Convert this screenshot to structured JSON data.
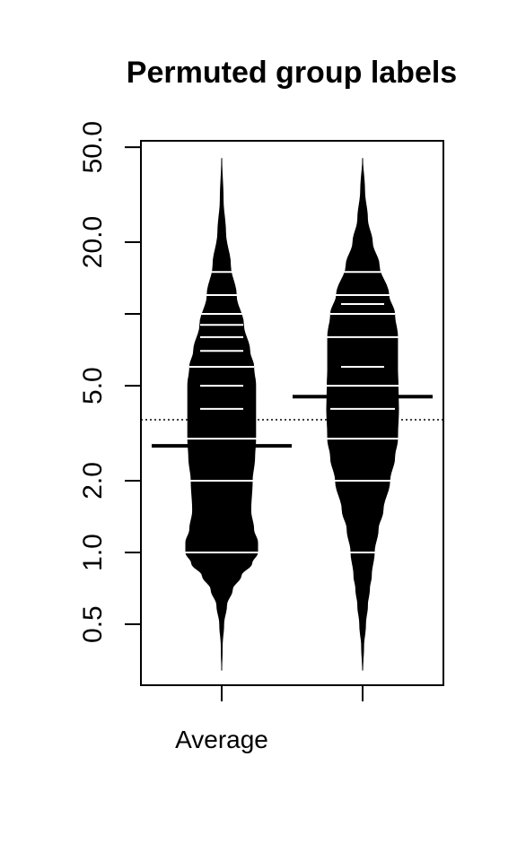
{
  "chart_data": {
    "type": "beanplot",
    "title": "Permuted group labels",
    "y_scale": "log",
    "ylim": [
      0.3,
      55
    ],
    "y_ticks": [
      {
        "value": 0.5,
        "label": "0.5"
      },
      {
        "value": 1,
        "label": "1.0"
      },
      {
        "value": 2,
        "label": "2.0"
      },
      {
        "value": 5,
        "label": "5.0"
      },
      {
        "value": 10,
        "label": ""
      },
      {
        "value": 20,
        "label": "20.0"
      },
      {
        "value": 50,
        "label": "50.0"
      }
    ],
    "x_tick_labels": [
      "Average",
      ""
    ],
    "overall_mean_line": 3.6,
    "beans": [
      {
        "name": "Average",
        "mean": 2.8,
        "density": [
          [
            0.32,
            0.0
          ],
          [
            0.4,
            0.01
          ],
          [
            0.5,
            0.04
          ],
          [
            0.6,
            0.1
          ],
          [
            0.7,
            0.22
          ],
          [
            0.8,
            0.4
          ],
          [
            0.9,
            0.62
          ],
          [
            1.0,
            0.74
          ],
          [
            1.1,
            0.74
          ],
          [
            1.25,
            0.66
          ],
          [
            1.5,
            0.6
          ],
          [
            2.0,
            0.63
          ],
          [
            2.5,
            0.68
          ],
          [
            3.0,
            0.7
          ],
          [
            4.0,
            0.7
          ],
          [
            5.0,
            0.7
          ],
          [
            6.0,
            0.66
          ],
          [
            7.0,
            0.58
          ],
          [
            9.0,
            0.45
          ],
          [
            12.0,
            0.3
          ],
          [
            16.0,
            0.18
          ],
          [
            22.0,
            0.08
          ],
          [
            30.0,
            0.03
          ],
          [
            45.0,
            0.0
          ]
        ],
        "observations": [
          {
            "value": 1.0,
            "count": 3
          },
          {
            "value": 2.0,
            "count": 2
          },
          {
            "value": 3.0,
            "count": 3
          },
          {
            "value": 4.0,
            "count": 1
          },
          {
            "value": 5.0,
            "count": 1
          },
          {
            "value": 6.0,
            "count": 2
          },
          {
            "value": 7.0,
            "count": 1
          },
          {
            "value": 8.0,
            "count": 1
          },
          {
            "value": 9.0,
            "count": 1
          },
          {
            "value": 10.0,
            "count": 1
          },
          {
            "value": 12.0,
            "count": 2
          },
          {
            "value": 15.0,
            "count": 1
          }
        ]
      },
      {
        "name": "",
        "mean": 4.5,
        "density": [
          [
            0.32,
            0.0
          ],
          [
            0.4,
            0.02
          ],
          [
            0.5,
            0.06
          ],
          [
            0.6,
            0.1
          ],
          [
            0.7,
            0.14
          ],
          [
            0.8,
            0.18
          ],
          [
            1.0,
            0.24
          ],
          [
            1.25,
            0.32
          ],
          [
            1.5,
            0.42
          ],
          [
            2.0,
            0.56
          ],
          [
            2.5,
            0.66
          ],
          [
            3.0,
            0.72
          ],
          [
            4.0,
            0.74
          ],
          [
            5.0,
            0.73
          ],
          [
            6.0,
            0.72
          ],
          [
            7.0,
            0.72
          ],
          [
            8.0,
            0.72
          ],
          [
            10.0,
            0.66
          ],
          [
            12.0,
            0.54
          ],
          [
            16.0,
            0.34
          ],
          [
            20.0,
            0.2
          ],
          [
            25.0,
            0.1
          ],
          [
            33.0,
            0.04
          ],
          [
            45.0,
            0.0
          ]
        ],
        "observations": [
          {
            "value": 1.0,
            "count": 1
          },
          {
            "value": 2.0,
            "count": 2
          },
          {
            "value": 3.0,
            "count": 3
          },
          {
            "value": 4.0,
            "count": 2
          },
          {
            "value": 5.0,
            "count": 3
          },
          {
            "value": 6.0,
            "count": 1
          },
          {
            "value": 8.0,
            "count": 3
          },
          {
            "value": 10.0,
            "count": 2
          },
          {
            "value": 11.0,
            "count": 1
          },
          {
            "value": 12.0,
            "count": 2
          },
          {
            "value": 15.0,
            "count": 1
          }
        ]
      }
    ]
  }
}
